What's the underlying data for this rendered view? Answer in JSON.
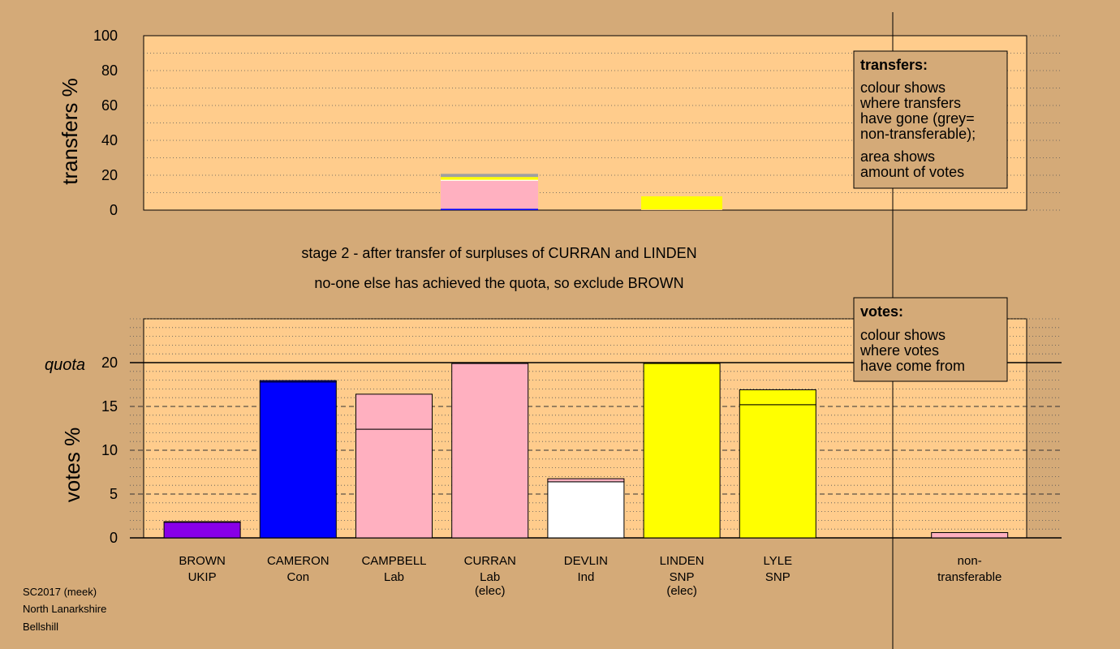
{
  "stage": {
    "line1": "stage 2 - after transfer of surpluses of CURRAN and LINDEN",
    "line2": "no-one else has achieved the quota, so exclude BROWN"
  },
  "footer": [
    "SC2017 (meek)",
    "North Lanarkshire",
    "Bellshill"
  ],
  "legend_transfers": {
    "title": "transfers:",
    "lines": [
      "colour shows",
      "where transfers",
      "have gone (grey=",
      "non-transferable);",
      "area shows",
      "amount of votes"
    ]
  },
  "legend_votes": {
    "title": "votes:",
    "lines": [
      "colour shows",
      "where votes",
      "have come from"
    ]
  },
  "colors": {
    "background": "#d4aa78",
    "plot_bg": "#ffcc8c",
    "ukip": "#8800e8",
    "con": "#0000ff",
    "lab": "#ffb0c0",
    "ind": "#ffffff",
    "snp": "#ffff00",
    "nontransferable": "#a0a0a0"
  },
  "chart_data": [
    {
      "type": "bar",
      "stacked": true,
      "ylabel": "transfers %",
      "ylim": [
        0,
        100
      ],
      "yticks": [
        0,
        20,
        40,
        60,
        80,
        100
      ],
      "categories": [
        "BROWN",
        "CAMERON",
        "CAMPBELL",
        "CURRAN",
        "DEVLIN",
        "LINDEN",
        "LYLE",
        "non-transferable"
      ],
      "bars": [
        {
          "category": "CURRAN",
          "segments": [
            {
              "color": "#0000ff",
              "value": 0.8
            },
            {
              "color": "#ffb0c0",
              "value": 16.0
            },
            {
              "color": "#ffffff",
              "value": 0.6
            },
            {
              "color": "#ffff00",
              "value": 1.6
            },
            {
              "color": "#a0a0a0",
              "value": 1.8
            }
          ]
        },
        {
          "category": "LINDEN",
          "segments": [
            {
              "color": "#ffb0c0",
              "value": 0.3
            },
            {
              "color": "#ffff00",
              "value": 7.6
            }
          ]
        }
      ]
    },
    {
      "type": "bar",
      "stacked": true,
      "ylabel": "votes %",
      "ylim": [
        0,
        25
      ],
      "yticks": [
        0,
        5,
        10,
        15,
        20
      ],
      "quota": 20,
      "quota_label": "quota",
      "categories": [
        "BROWN",
        "CAMERON",
        "CAMPBELL",
        "CURRAN",
        "DEVLIN",
        "LINDEN",
        "LYLE",
        "non-transferable"
      ],
      "candidates": [
        {
          "name": "BROWN",
          "party": "UKIP",
          "status": "",
          "segments": [
            {
              "color": "#8800e8",
              "value": 1.8
            },
            {
              "color": "#0000ff",
              "value": 0.05
            }
          ]
        },
        {
          "name": "CAMERON",
          "party": "Con",
          "status": "",
          "segments": [
            {
              "color": "#0000ff",
              "value": 17.8
            },
            {
              "color": "#0000ff",
              "value": 0.15
            }
          ]
        },
        {
          "name": "CAMPBELL",
          "party": "Lab",
          "status": "",
          "segments": [
            {
              "color": "#ffb0c0",
              "value": 12.4
            },
            {
              "color": "#ffb0c0",
              "value": 4.0
            }
          ]
        },
        {
          "name": "CURRAN",
          "party": "Lab",
          "status": "(elec)",
          "segments": [
            {
              "color": "#ffb0c0",
              "value": 19.9
            }
          ]
        },
        {
          "name": "DEVLIN",
          "party": "Ind",
          "status": "",
          "segments": [
            {
              "color": "#ffffff",
              "value": 6.4
            },
            {
              "color": "#ffb0c0",
              "value": 0.35
            }
          ]
        },
        {
          "name": "LINDEN",
          "party": "SNP",
          "status": "(elec)",
          "segments": [
            {
              "color": "#ffff00",
              "value": 19.9
            }
          ]
        },
        {
          "name": "LYLE",
          "party": "SNP",
          "status": "",
          "segments": [
            {
              "color": "#ffff00",
              "value": 15.2
            },
            {
              "color": "#ffff00",
              "value": 1.7
            }
          ]
        },
        {
          "name": "non-transferable",
          "party": "",
          "status": "",
          "segments": [
            {
              "color": "#ffb0c0",
              "value": 0.6
            }
          ]
        }
      ]
    }
  ]
}
